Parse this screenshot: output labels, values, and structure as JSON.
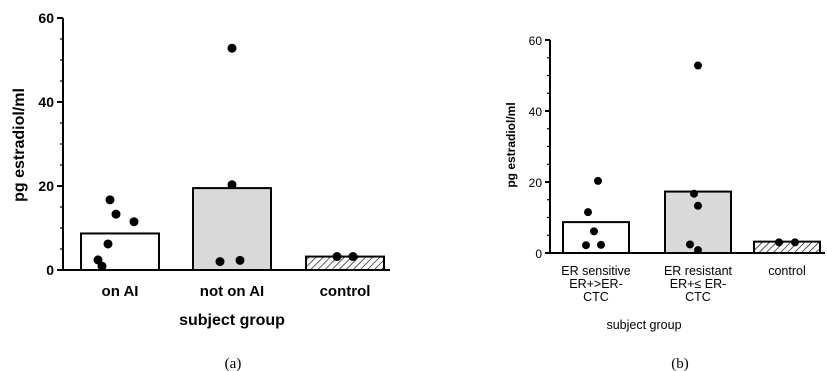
{
  "chart_data": [
    {
      "type": "bar",
      "panel_label": "(a)",
      "categories": [
        "on AI",
        "not on AI",
        "control"
      ],
      "bar_values": [
        8.7,
        19.5,
        3.2
      ],
      "bar_fills": [
        "#ffffff",
        "#d9d9d9",
        "hatched"
      ],
      "points": [
        [
          0.9,
          2.4,
          6.2,
          11.5,
          13.3,
          16.7
        ],
        [
          2.0,
          2.3,
          20.3,
          52.8
        ],
        [
          3.2,
          3.2
        ]
      ],
      "ylabel": "pg estradiol/ml",
      "xlabel": "subject group",
      "ylim": [
        0,
        60
      ],
      "yticks": [
        0,
        20,
        40,
        60
      ],
      "grid": false
    },
    {
      "type": "bar",
      "panel_label": "(b)",
      "categories": [
        [
          "ER sensitive",
          "ER+>ER-",
          "CTC"
        ],
        [
          "ER resistant",
          "ER+≤ ER-",
          "CTC"
        ],
        [
          "control"
        ]
      ],
      "bar_values": [
        8.7,
        17.3,
        3.2
      ],
      "bar_fills": [
        "#ffffff",
        "#d9d9d9",
        "hatched"
      ],
      "points": [
        [
          2.2,
          2.3,
          6.1,
          11.5,
          20.3
        ],
        [
          0.8,
          2.4,
          13.3,
          16.7,
          52.8
        ],
        [
          3.0,
          3.0
        ]
      ],
      "ylabel": "pg estradiol/ml",
      "xlabel": "subject group",
      "ylim": [
        0,
        60
      ],
      "yticks": [
        0,
        20,
        40,
        60
      ],
      "grid": false
    }
  ]
}
